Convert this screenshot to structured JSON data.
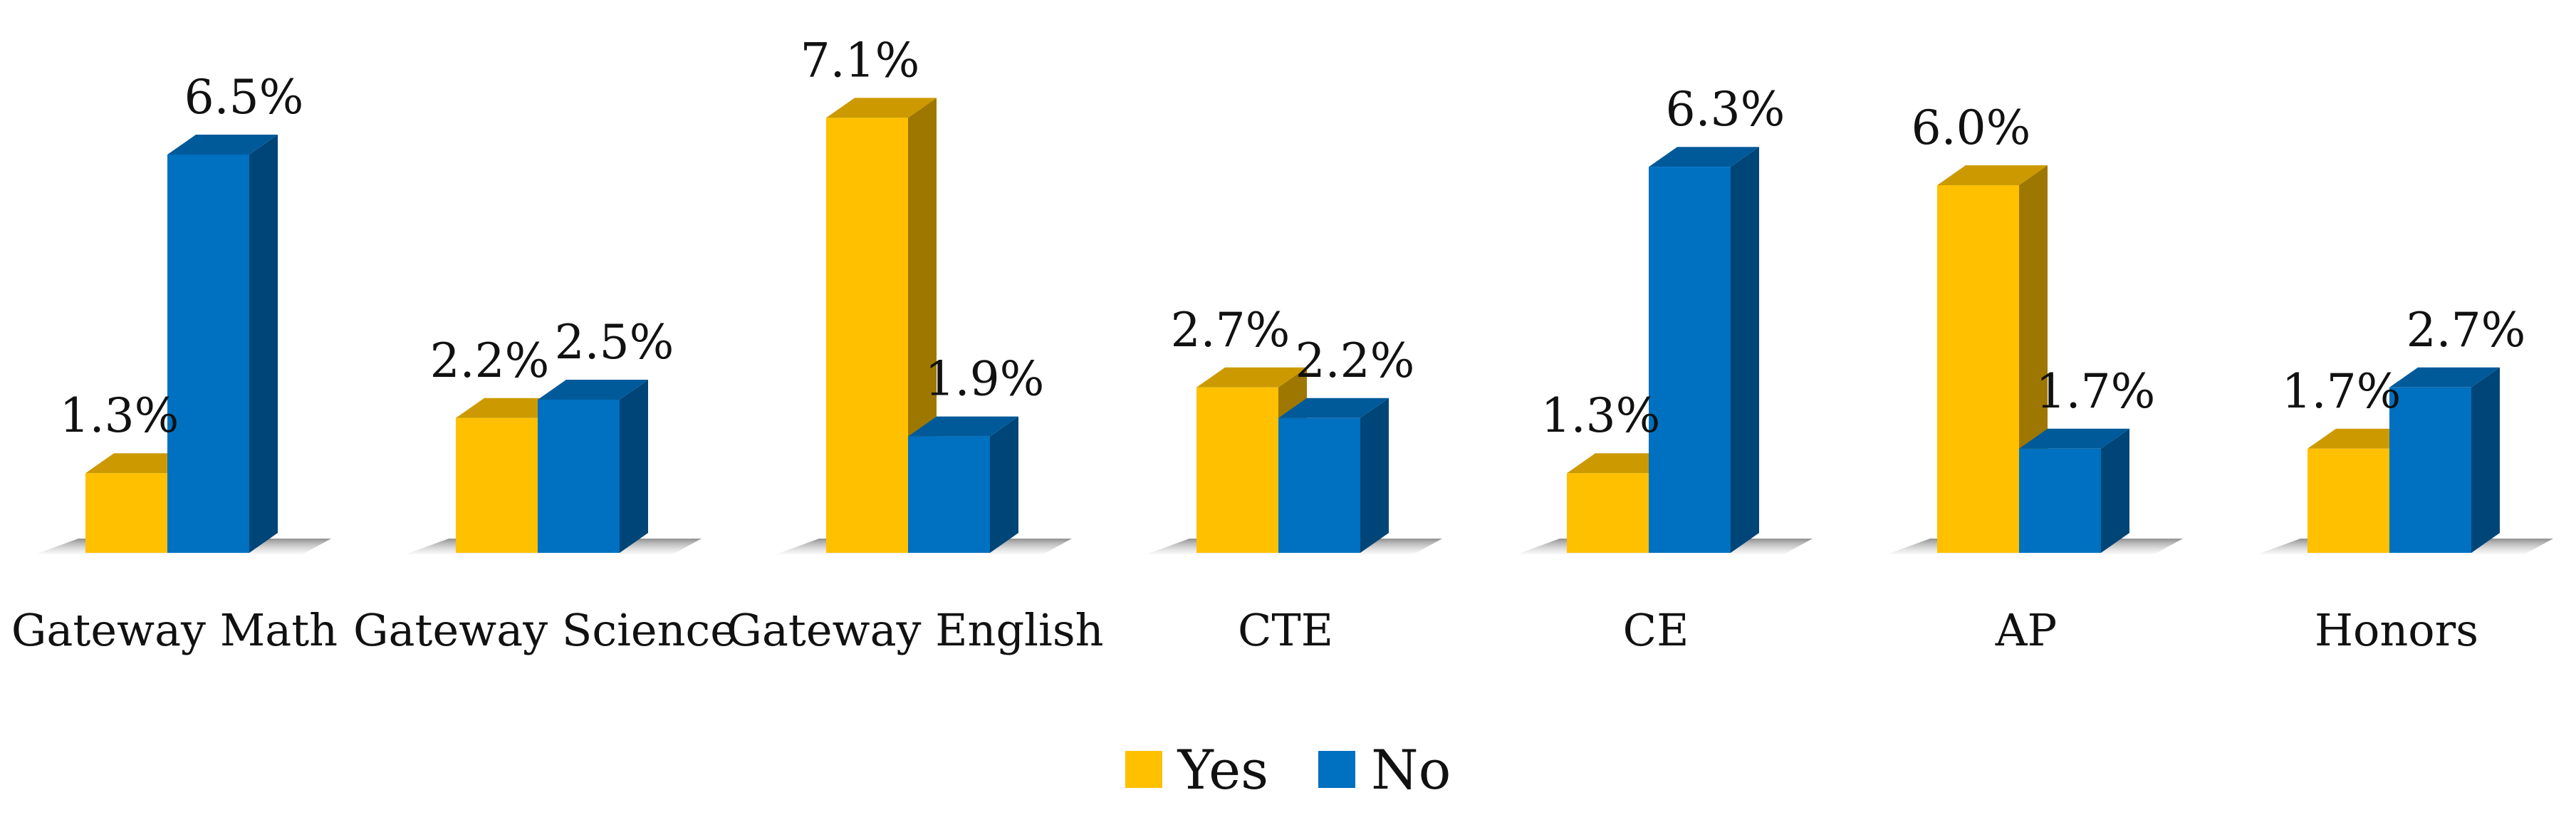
{
  "chart_data": {
    "type": "bar",
    "categories": [
      "Gateway Math",
      "Gateway Science",
      "Gateway English",
      "CTE",
      "CE",
      "AP",
      "Honors"
    ],
    "series": [
      {
        "name": "Yes",
        "color": "#FFC000",
        "values": [
          1.3,
          2.2,
          7.1,
          2.7,
          1.3,
          6.0,
          1.7
        ],
        "labels": [
          "1.3%",
          "2.2%",
          "7.1%",
          "2.7%",
          "1.3%",
          "6.0%",
          "1.7%"
        ]
      },
      {
        "name": "No",
        "color": "#0070C0",
        "values": [
          6.5,
          2.5,
          1.9,
          2.2,
          6.3,
          1.7,
          2.7
        ],
        "labels": [
          "6.5%",
          "2.5%",
          "1.9%",
          "2.2%",
          "6.3%",
          "1.7%",
          "2.7%"
        ]
      }
    ],
    "ylim": [
      0,
      8
    ],
    "legend_position": "bottom",
    "grid": false,
    "style": "3d"
  }
}
